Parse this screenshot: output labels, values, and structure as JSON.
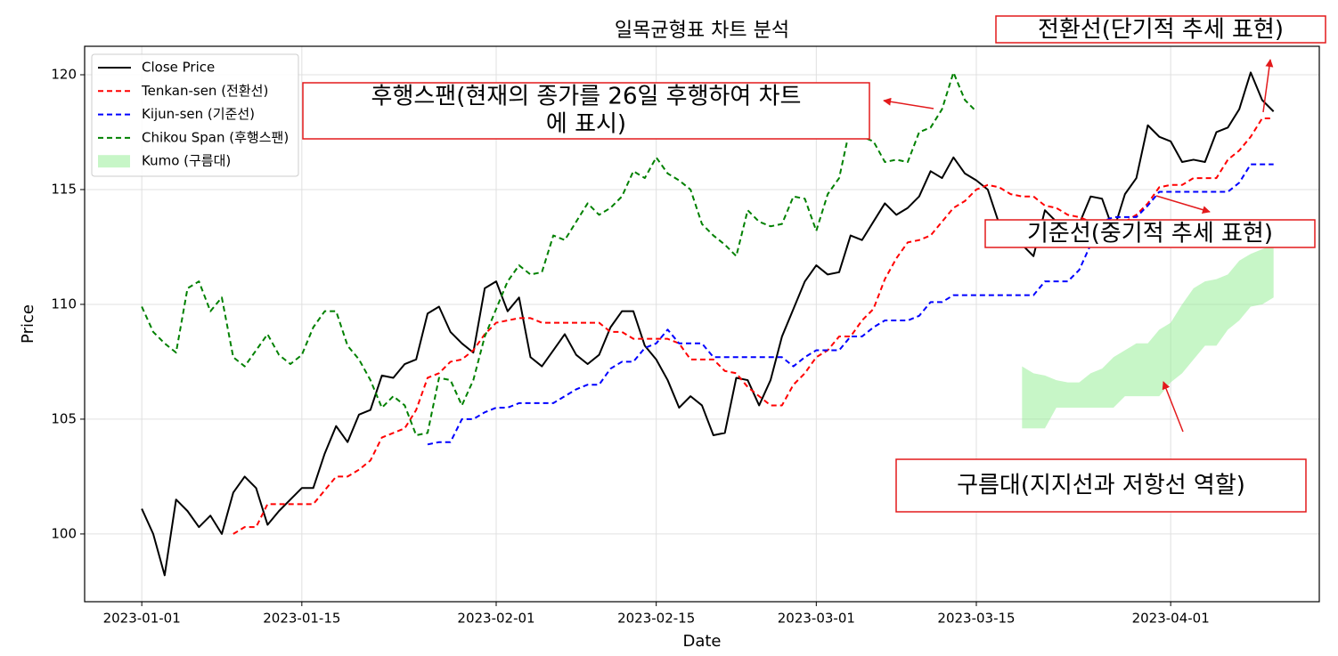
{
  "chart_data": {
    "type": "line",
    "title": "일목균형표 차트 분석",
    "x_label": "Date",
    "y_label": "Price",
    "x": [
      "2023-01-01",
      "2023-01-02",
      "2023-01-03",
      "2023-01-04",
      "2023-01-05",
      "2023-01-06",
      "2023-01-07",
      "2023-01-08",
      "2023-01-09",
      "2023-01-10",
      "2023-01-11",
      "2023-01-12",
      "2023-01-13",
      "2023-01-14",
      "2023-01-15",
      "2023-01-16",
      "2023-01-17",
      "2023-01-18",
      "2023-01-19",
      "2023-01-20",
      "2023-01-21",
      "2023-01-22",
      "2023-01-23",
      "2023-01-24",
      "2023-01-25",
      "2023-01-26",
      "2023-01-27",
      "2023-01-28",
      "2023-01-29",
      "2023-01-30",
      "2023-01-31",
      "2023-02-01",
      "2023-02-02",
      "2023-02-03",
      "2023-02-04",
      "2023-02-05",
      "2023-02-06",
      "2023-02-07",
      "2023-02-08",
      "2023-02-09",
      "2023-02-10",
      "2023-02-11",
      "2023-02-12",
      "2023-02-13",
      "2023-02-14",
      "2023-02-15",
      "2023-02-16",
      "2023-02-17",
      "2023-02-18",
      "2023-02-19",
      "2023-02-20",
      "2023-02-21",
      "2023-02-22",
      "2023-02-23",
      "2023-02-24",
      "2023-02-25",
      "2023-02-26",
      "2023-02-27",
      "2023-02-28",
      "2023-03-01",
      "2023-03-02",
      "2023-03-03",
      "2023-03-04",
      "2023-03-05",
      "2023-03-06",
      "2023-03-07",
      "2023-03-08",
      "2023-03-09",
      "2023-03-10",
      "2023-03-11",
      "2023-03-12",
      "2023-03-13",
      "2023-03-14",
      "2023-03-15",
      "2023-03-16",
      "2023-03-17",
      "2023-03-18",
      "2023-03-19",
      "2023-03-20",
      "2023-03-21",
      "2023-03-22",
      "2023-03-23",
      "2023-03-24",
      "2023-03-25",
      "2023-03-26",
      "2023-03-27",
      "2023-03-28",
      "2023-03-29",
      "2023-03-30",
      "2023-03-31",
      "2023-04-01",
      "2023-04-02",
      "2023-04-03",
      "2023-04-04",
      "2023-04-05",
      "2023-04-06",
      "2023-04-07",
      "2023-04-08",
      "2023-04-09",
      "2023-04-10"
    ],
    "xlim": [
      "2022-12-27",
      "2023-04-14"
    ],
    "xticks": [
      "2023-01-01",
      "2023-01-15",
      "2023-02-01",
      "2023-02-15",
      "2023-03-01",
      "2023-03-15",
      "2023-04-01"
    ],
    "ylim": [
      97.05,
      121.24
    ],
    "yticks": [
      100,
      105,
      110,
      115,
      120
    ],
    "grid": true,
    "legend": "upper left",
    "series": [
      {
        "name": "Close Price",
        "color": "#000000",
        "style": "solid",
        "values": [
          101.1,
          100.0,
          98.2,
          101.5,
          101.0,
          100.3,
          100.8,
          100.0,
          101.8,
          102.5,
          102.0,
          100.4,
          101.0,
          101.5,
          102.0,
          102.0,
          103.5,
          104.7,
          104.0,
          105.2,
          105.4,
          106.9,
          106.8,
          107.4,
          107.6,
          109.6,
          109.9,
          108.8,
          108.3,
          107.9,
          110.7,
          111.0,
          109.7,
          110.3,
          107.7,
          107.3,
          108.0,
          108.7,
          107.8,
          107.4,
          107.8,
          109.0,
          109.7,
          109.7,
          108.2,
          107.6,
          106.7,
          105.5,
          106.0,
          105.6,
          104.3,
          104.4,
          106.8,
          106.7,
          105.6,
          106.7,
          108.6,
          109.8,
          111.0,
          111.7,
          111.3,
          111.4,
          113.0,
          112.8,
          113.6,
          114.4,
          113.9,
          114.2,
          114.7,
          115.8,
          115.5,
          116.4,
          115.7,
          115.4,
          115.0,
          113.5,
          113.0,
          112.6,
          112.1,
          114.1,
          113.6,
          113.4,
          113.5,
          114.7,
          114.6,
          113.2,
          114.8,
          115.5,
          117.8,
          117.3,
          117.1,
          116.2,
          116.3,
          116.2,
          117.5,
          117.7,
          118.5,
          120.1,
          118.9,
          118.4
        ]
      },
      {
        "name": "Tenkan-sen (전환선)",
        "color": "#ff0000",
        "style": "dashed",
        "values": [
          null,
          null,
          null,
          null,
          null,
          null,
          null,
          null,
          100.0,
          100.3,
          100.3,
          101.3,
          101.3,
          101.3,
          101.3,
          101.3,
          101.9,
          102.5,
          102.5,
          102.8,
          103.2,
          104.2,
          104.4,
          104.6,
          105.4,
          106.8,
          107.0,
          107.5,
          107.6,
          108.0,
          108.7,
          109.2,
          109.3,
          109.4,
          109.4,
          109.2,
          109.2,
          109.2,
          109.2,
          109.2,
          109.2,
          108.8,
          108.8,
          108.5,
          108.5,
          108.5,
          108.5,
          108.3,
          107.6,
          107.6,
          107.6,
          107.1,
          107.0,
          106.4,
          106.0,
          105.6,
          105.6,
          106.5,
          107.0,
          107.7,
          108.0,
          108.6,
          108.6,
          109.3,
          109.8,
          111.1,
          112.0,
          112.7,
          112.8,
          113.0,
          113.6,
          114.2,
          114.5,
          115.0,
          115.2,
          115.1,
          114.8,
          114.7,
          114.7,
          114.3,
          114.2,
          113.9,
          113.8,
          113.6,
          113.6,
          113.6,
          113.6,
          113.9,
          114.4,
          115.1,
          115.2,
          115.2,
          115.5,
          115.5,
          115.5,
          116.3,
          116.7,
          117.3,
          118.1,
          118.1
        ]
      },
      {
        "name": "Kijun-sen (기준선)",
        "color": "#0000ff",
        "style": "dashed",
        "values": [
          null,
          null,
          null,
          null,
          null,
          null,
          null,
          null,
          null,
          null,
          null,
          null,
          null,
          null,
          null,
          null,
          null,
          null,
          null,
          null,
          null,
          null,
          null,
          null,
          null,
          103.9,
          104.0,
          104.0,
          105.0,
          105.0,
          105.3,
          105.5,
          105.5,
          105.7,
          105.7,
          105.7,
          105.7,
          106.0,
          106.3,
          106.5,
          106.5,
          107.2,
          107.5,
          107.5,
          108.1,
          108.3,
          108.9,
          108.3,
          108.3,
          108.3,
          107.7,
          107.7,
          107.7,
          107.7,
          107.7,
          107.7,
          107.7,
          107.3,
          107.7,
          108.0,
          108.0,
          108.0,
          108.6,
          108.6,
          109.0,
          109.3,
          109.3,
          109.3,
          109.5,
          110.1,
          110.1,
          110.4,
          110.4,
          110.4,
          110.4,
          110.4,
          110.4,
          110.4,
          110.4,
          111.0,
          111.0,
          111.0,
          111.5,
          112.6,
          113.6,
          113.8,
          113.8,
          113.8,
          114.3,
          114.9,
          114.9,
          114.9,
          114.9,
          114.9,
          114.9,
          114.9,
          115.3,
          116.1,
          116.1,
          116.1
        ]
      },
      {
        "name": "Chikou Span (후행스팬)",
        "color": "#008000",
        "style": "dashed",
        "values": [
          109.9,
          108.8,
          108.3,
          107.9,
          110.7,
          111.0,
          109.7,
          110.3,
          107.7,
          107.3,
          108.0,
          108.7,
          107.8,
          107.4,
          107.8,
          109.0,
          109.7,
          109.7,
          108.2,
          107.6,
          106.7,
          105.5,
          106.0,
          105.6,
          104.3,
          104.4,
          106.8,
          106.7,
          105.6,
          106.7,
          108.6,
          109.8,
          111.0,
          111.7,
          111.3,
          111.4,
          113.0,
          112.8,
          113.6,
          114.4,
          113.9,
          114.2,
          114.7,
          115.8,
          115.5,
          116.4,
          115.7,
          115.4,
          115.0,
          113.5,
          113.0,
          112.6,
          112.1,
          114.1,
          113.6,
          113.4,
          113.5,
          114.7,
          114.6,
          113.2,
          114.8,
          115.5,
          117.8,
          117.3,
          117.1,
          116.2,
          116.3,
          116.2,
          117.5,
          117.7,
          118.5,
          120.1,
          118.9,
          118.4,
          null,
          null,
          null,
          null,
          null,
          null,
          null,
          null,
          null,
          null,
          null,
          null,
          null,
          null,
          null,
          null,
          null,
          null,
          null,
          null,
          null,
          null,
          null,
          null,
          null,
          null
        ]
      },
      {
        "name": "Kumo (구름대)",
        "color": "#90ee90",
        "style": "fill",
        "upper": [
          null,
          null,
          null,
          null,
          null,
          null,
          null,
          null,
          null,
          null,
          null,
          null,
          null,
          null,
          null,
          null,
          null,
          null,
          null,
          null,
          null,
          null,
          null,
          null,
          null,
          null,
          null,
          null,
          null,
          null,
          null,
          null,
          null,
          null,
          null,
          null,
          null,
          null,
          null,
          null,
          null,
          null,
          null,
          null,
          null,
          null,
          null,
          null,
          null,
          null,
          null,
          null,
          null,
          null,
          null,
          null,
          null,
          null,
          null,
          null,
          null,
          null,
          null,
          null,
          null,
          null,
          null,
          null,
          null,
          null,
          null,
          null,
          null,
          null,
          null,
          null,
          null,
          107.3,
          107.0,
          106.9,
          106.7,
          106.6,
          106.6,
          107.0,
          107.2,
          107.7,
          108.0,
          108.3,
          108.3,
          108.9,
          109.2,
          110.0,
          110.7,
          111.0,
          111.1,
          111.3,
          111.9,
          112.2,
          112.4,
          112.6
        ],
        "lower": [
          null,
          null,
          null,
          null,
          null,
          null,
          null,
          null,
          null,
          null,
          null,
          null,
          null,
          null,
          null,
          null,
          null,
          null,
          null,
          null,
          null,
          null,
          null,
          null,
          null,
          null,
          null,
          null,
          null,
          null,
          null,
          null,
          null,
          null,
          null,
          null,
          null,
          null,
          null,
          null,
          null,
          null,
          null,
          null,
          null,
          null,
          null,
          null,
          null,
          null,
          null,
          null,
          null,
          null,
          null,
          null,
          null,
          null,
          null,
          null,
          null,
          null,
          null,
          null,
          null,
          null,
          null,
          null,
          null,
          null,
          null,
          null,
          null,
          null,
          null,
          null,
          null,
          104.6,
          104.6,
          104.6,
          105.5,
          105.5,
          105.5,
          105.5,
          105.5,
          105.5,
          106.0,
          106.0,
          106.0,
          106.0,
          106.6,
          107.0,
          107.6,
          108.2,
          108.2,
          108.9,
          109.3,
          109.9,
          110.0,
          110.3
        ]
      }
    ],
    "annotations": [
      "전환선(단기적 추세 표현)",
      [
        "후행스팬(현재의 종가를 26일 후행하여 차트",
        "에 표시)"
      ],
      "기준선(중기적 추세 표현)",
      "구름대(지지선과 저항선 역할)"
    ]
  }
}
